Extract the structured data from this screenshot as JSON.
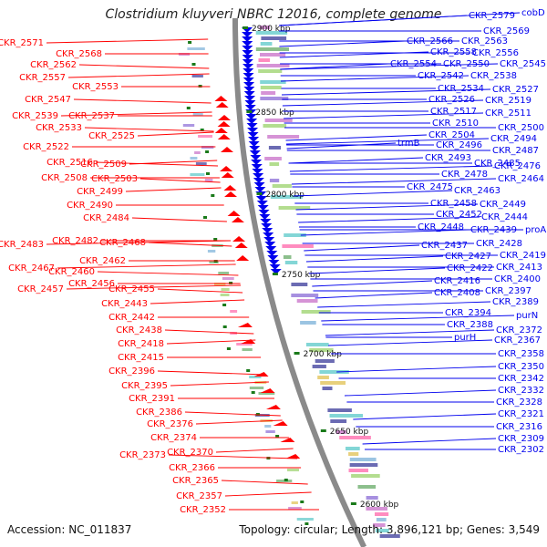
{
  "title": "Clostridium kluyveri NBRC 12016, complete genome",
  "accession": "Accession: NC_011837",
  "summary": "Topology: circular; Length: 3,896,121 bp; Genes: 3,549",
  "scale_labels": [
    "2900 kbp",
    "2850 kbp",
    "2800 kbp",
    "2750 kbp",
    "2700 kbp",
    "2650 kbp",
    "2600 kbp"
  ],
  "left_genes": [
    "CKR_2571",
    "CKR_2568",
    "CKR_2562",
    "CKR_2557",
    "CKR_2553",
    "CKR_2547",
    "CKR_2539",
    "CKR_2537",
    "CKR_2533",
    "CKR_2525",
    "CKR_2522",
    "CKR_2516",
    "CKR_2509",
    "CKR_2508",
    "CKR_2503",
    "CKR_2499",
    "CKR_2490",
    "CKR_2484",
    "CKR_2483",
    "CKR_2482",
    "CKR_2468",
    "CKR_2467",
    "CKR_2462",
    "CKR_2460",
    "CKR_2457",
    "CKR_2456",
    "CKR_2455",
    "CKR_2443",
    "CKR_2442",
    "CKR_2438",
    "CKR_2418",
    "CKR_2415",
    "CKR_2396",
    "CKR_2395",
    "CKR_2391",
    "CKR_2386",
    "CKR_2376",
    "CKR_2374",
    "CKR_2373",
    "CKR_2370",
    "CKR_2366",
    "CKR_2365",
    "CKR_2357",
    "CKR_2352"
  ],
  "right_genes": [
    "CKR_2579",
    "cobD",
    "CKR_2569",
    "CKR_2566",
    "CKR_2563",
    "CKR_2558",
    "CKR_2556",
    "CKR_2554",
    "CKR_2550",
    "CKR_2545",
    "CKR_2542",
    "CKR_2538",
    "CKR_2534",
    "CKR_2527",
    "CKR_2526",
    "CKR_2519",
    "CKR_2517",
    "CKR_2511",
    "CKR_2510",
    "CKR_2504",
    "CKR_2500",
    "trmB",
    "CKR_2496",
    "CKR_2494",
    "CKR_2487",
    "CKR_2493",
    "CKR_2485",
    "CKR_2476",
    "CKR_2478",
    "CKR_2464",
    "CKR_2475",
    "CKR_2463",
    "CKR_2458",
    "CKR_2449",
    "CKR_2452",
    "CKR_2444",
    "CKR_2448",
    "CKR_2439",
    "proA",
    "CKR_2437",
    "CKR_2428",
    "CKR_2427",
    "CKR_2419",
    "CKR_2422",
    "CKR_2413",
    "CKR_2416",
    "CKR_2400",
    "CKR_2408",
    "CKR_2397",
    "CKR_2389",
    "CKR_2394",
    "purN",
    "CKR_2388",
    "CKR_2372",
    "purH",
    "CKR_2367",
    "CKR_2358",
    "CKR_2350",
    "CKR_2342",
    "CKR_2332",
    "CKR_2328",
    "CKR_2321",
    "CKR_2316",
    "CKR_2309",
    "CKR_2302"
  ],
  "colors": {
    "forward": "#ff0000",
    "reverse": "#0000ee",
    "backbone": "#8a8a8a",
    "tick": "#1a7a1a"
  }
}
